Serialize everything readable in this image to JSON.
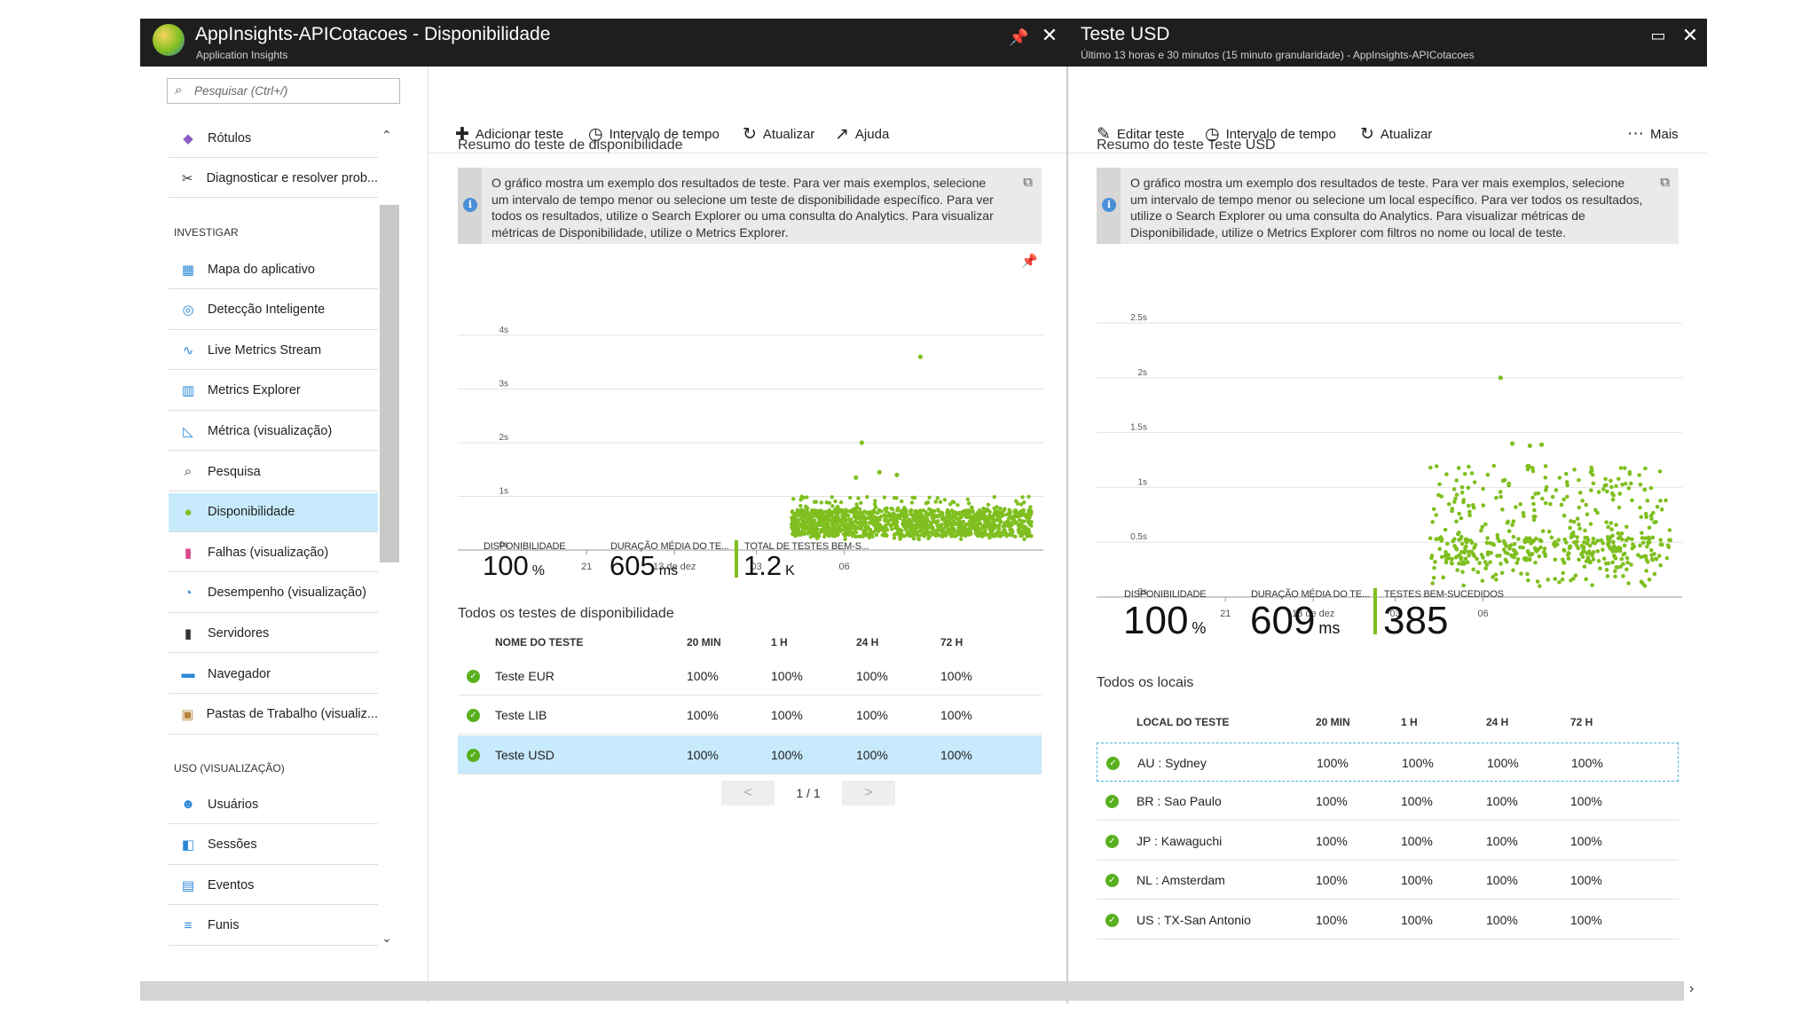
{
  "left_blade": {
    "title": "AppInsights-APICotacoes - Disponibilidade",
    "subtitle": "Application Insights",
    "search_placeholder": "Pesquisar (Ctrl+/)",
    "toolbar": {
      "add": "Adicionar teste",
      "time": "Intervalo de tempo",
      "refresh": "Atualizar",
      "help": "Ajuda"
    },
    "nav": {
      "top_items": [
        {
          "label": "Rótulos",
          "icon": "tag-icon"
        },
        {
          "label": "Diagnosticar e resolver prob...",
          "icon": "wrench-icon"
        }
      ],
      "investigate_header": "INVESTIGAR",
      "investigate_items": [
        {
          "label": "Mapa do aplicativo",
          "icon": "app-map-icon"
        },
        {
          "label": "Detecção Inteligente",
          "icon": "smart-detection-icon"
        },
        {
          "label": "Live Metrics Stream",
          "icon": "pulse-icon"
        },
        {
          "label": "Metrics Explorer",
          "icon": "bar-chart-icon"
        },
        {
          "label": "Métrica (visualização)",
          "icon": "line-chart-icon"
        },
        {
          "label": "Pesquisa",
          "icon": "search-icon"
        },
        {
          "label": "Disponibilidade",
          "icon": "globe-icon"
        },
        {
          "label": "Falhas (visualização)",
          "icon": "failures-icon"
        },
        {
          "label": "Desempenho (visualização)",
          "icon": "performance-icon"
        },
        {
          "label": "Servidores",
          "icon": "server-icon"
        },
        {
          "label": "Navegador",
          "icon": "browser-icon"
        },
        {
          "label": "Pastas de Trabalho (visualiz...",
          "icon": "workbook-icon"
        }
      ],
      "usage_header": "USO (VISUALIZAÇÃO)",
      "usage_items": [
        {
          "label": "Usuários",
          "icon": "users-icon"
        },
        {
          "label": "Sessões",
          "icon": "sessions-icon"
        },
        {
          "label": "Eventos",
          "icon": "events-icon"
        },
        {
          "label": "Funis",
          "icon": "funnel-icon"
        }
      ]
    },
    "summary_title": "Resumo do teste de disponibilidade",
    "info_text": "O gráfico mostra um exemplo dos resultados de teste. Para ver mais exemplos, selecione um intervalo de tempo menor ou selecione um teste de disponibilidade específico. Para ver todos os resultados, utilize o Search Explorer ou uma consulta do Analytics. Para visualizar métricas de Disponibilidade, utilize o Metrics Explorer.",
    "stats": [
      {
        "label": "DISPONIBILIDADE",
        "value": "100",
        "unit": "%"
      },
      {
        "label": "DURAÇÃO MÉDIA DO TE...",
        "value": "605",
        "unit": "ms"
      },
      {
        "label": "TOTAL DE TESTES BEM-S...",
        "value": "1.2",
        "unit": "K"
      }
    ],
    "tests_title": "Todos os testes de disponibilidade",
    "table_headers": [
      "NOME DO TESTE",
      "20 MIN",
      "1 H",
      "24 H",
      "72 H"
    ],
    "rows": [
      {
        "name": "Teste EUR",
        "v": [
          "100%",
          "100%",
          "100%",
          "100%"
        ]
      },
      {
        "name": "Teste LIB",
        "v": [
          "100%",
          "100%",
          "100%",
          "100%"
        ]
      },
      {
        "name": "Teste USD",
        "v": [
          "100%",
          "100%",
          "100%",
          "100%"
        ]
      }
    ],
    "pager": {
      "prev": "<",
      "page": "1 / 1",
      "next": ">"
    }
  },
  "right_blade": {
    "title": "Teste USD",
    "subtitle": "Último 13 horas e 30 minutos (15 minuto granularidade) - AppInsights-APICotacoes",
    "toolbar": {
      "edit": "Editar teste",
      "time": "Intervalo de tempo",
      "refresh": "Atualizar",
      "more": "Mais"
    },
    "summary_title": "Resumo do teste Teste USD",
    "info_text": "O gráfico mostra um exemplo dos resultados de teste. Para ver mais exemplos, selecione um intervalo de tempo menor ou selecione um local específico. Para ver todos os resultados, utilize o Search Explorer ou uma consulta do Analytics. Para visualizar métricas de Disponibilidade, utilize o Metrics Explorer com filtros no nome ou local de teste.",
    "stats": [
      {
        "label": "DISPONIBILIDADE",
        "value": "100",
        "unit": "%"
      },
      {
        "label": "DURAÇÃO MÉDIA DO TE...",
        "value": "609",
        "unit": "ms"
      },
      {
        "label": "TESTES BEM-SUCEDIDOS",
        "value": "385",
        "unit": ""
      }
    ],
    "locations_title": "Todos os locais",
    "table_headers": [
      "LOCAL DO TESTE",
      "20 MIN",
      "1 H",
      "24 H",
      "72 H"
    ],
    "rows": [
      {
        "name": "AU : Sydney",
        "v": [
          "100%",
          "100%",
          "100%",
          "100%"
        ]
      },
      {
        "name": "BR : Sao Paulo",
        "v": [
          "100%",
          "100%",
          "100%",
          "100%"
        ]
      },
      {
        "name": "JP : Kawaguchi",
        "v": [
          "100%",
          "100%",
          "100%",
          "100%"
        ]
      },
      {
        "name": "NL : Amsterdam",
        "v": [
          "100%",
          "100%",
          "100%",
          "100%"
        ]
      },
      {
        "name": "US : TX-San Antonio",
        "v": [
          "100%",
          "100%",
          "100%",
          "100%"
        ]
      }
    ]
  },
  "colors": {
    "accent": "#7fbf1f",
    "selected": "#c7eafc",
    "titlebar": "#1e1e1e",
    "check": "#58b01e"
  },
  "chart_data": [
    {
      "type": "scatter",
      "ylim": [
        0,
        4
      ],
      "y_ticks": [
        "0s",
        "1s",
        "2s",
        "3s",
        "4s"
      ],
      "x_ticks": [
        "21",
        "13 de dez",
        "03",
        "06"
      ],
      "series": [
        {
          "values": [
            [
              0.66,
              0.6
            ],
            [
              0.68,
              1.35
            ],
            [
              0.79,
              3.6
            ],
            [
              0.69,
              2.0
            ],
            [
              0.72,
              1.45
            ],
            [
              0.75,
              1.4
            ]
          ]
        }
      ],
      "dense_band": {
        "x_from": 0.57,
        "x_to": 0.98,
        "y_from": 0.2,
        "y_to": 1.0
      },
      "grid": true
    },
    {
      "type": "scatter",
      "ylim": [
        0,
        2.5
      ],
      "y_ticks": [
        "0s",
        "0.5s",
        "1s",
        "1.5s",
        "2s",
        "2.5s"
      ],
      "x_ticks": [
        "21",
        "13 de dez",
        "03",
        "06"
      ],
      "series": [
        {
          "values": [
            [
              0.69,
              2.0
            ],
            [
              0.71,
              1.4
            ],
            [
              0.74,
              1.38
            ],
            [
              0.76,
              1.39
            ]
          ]
        }
      ],
      "dense_band": {
        "x_from": 0.57,
        "x_to": 0.98,
        "y_from": 0.1,
        "y_to": 1.2
      },
      "grid": true
    }
  ]
}
